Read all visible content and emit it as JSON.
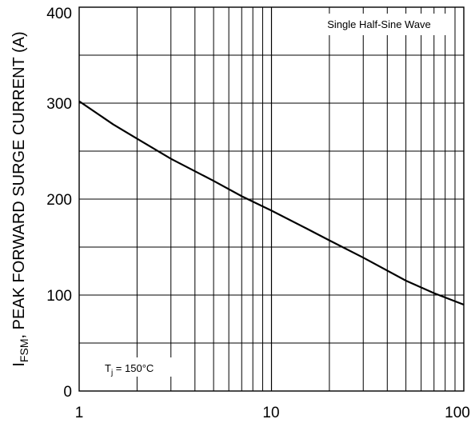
{
  "chart_data": {
    "type": "line",
    "x_scale": "log",
    "xlim": [
      1,
      100
    ],
    "ylim": [
      0,
      400
    ],
    "grid": true,
    "x_ticks": [
      "1",
      "10",
      "100"
    ],
    "y_ticks": [
      "0",
      "100",
      "200",
      "300",
      "400"
    ],
    "ylabel_main": "I",
    "ylabel_sub": "FSM",
    "ylabel_rest": ", PEAK FORWARD SURGE CURRENT (A)",
    "annotation_wave": "Single Half-Sine Wave",
    "annotation_tj_main": "T",
    "annotation_tj_sub": "j",
    "annotation_tj_rest": " = 150°C",
    "series": [
      {
        "x": [
          1,
          1.5,
          2,
          3,
          5,
          7,
          10,
          15,
          20,
          30,
          50,
          70,
          100
        ],
        "y": [
          302,
          278,
          263,
          242,
          219,
          203,
          188,
          170,
          157,
          139,
          115,
          102,
          90
        ]
      }
    ]
  }
}
